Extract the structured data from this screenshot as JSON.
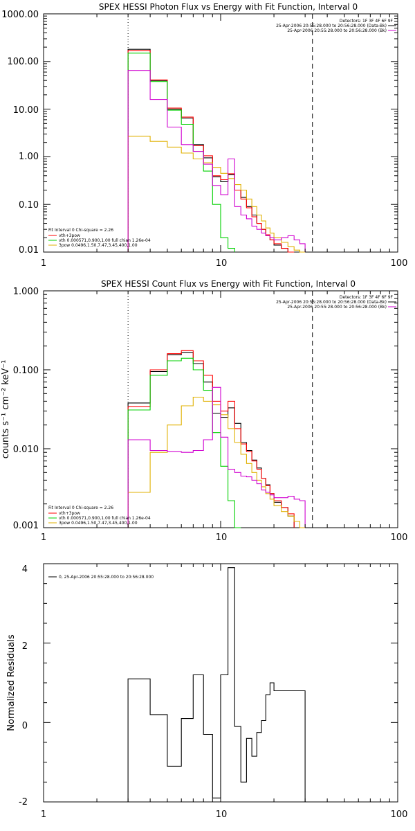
{
  "chart_data": [
    {
      "type": "line",
      "title": "SPEX HESSI Photon Flux vs Energy with Fit Function, Interval 0",
      "ylabel": "",
      "xscale": "log",
      "yscale": "log",
      "xlim": [
        1,
        100
      ],
      "ylim": [
        0.01,
        1000
      ],
      "x_ticks": [
        "1",
        "10",
        "100"
      ],
      "y_ticks": [
        "1000.00",
        "100.00",
        "10.00",
        "1.00",
        "0.10",
        "0.01"
      ],
      "energy_edges": [
        3,
        4,
        5,
        6,
        7,
        8,
        9,
        10,
        11,
        12,
        13,
        14,
        15,
        16,
        17,
        18,
        19,
        20,
        22,
        24,
        26,
        28,
        30,
        33
      ],
      "vlines": [
        {
          "x": 3,
          "style": "dotted"
        },
        {
          "x": 33,
          "style": "dashed"
        }
      ],
      "header_lines": [
        "Detectors: 1F 3F 4F 6F 9F",
        "25-Apr-2006 20:55:28.000 to 20:56:28.000 (Data-Bk)",
        "25-Apr-2006 20:55:28.000 to 20:56:28.000 (Bk)"
      ],
      "fit_info_lines": [
        "Fit Interval 0   Chi-square = 2.26",
        "vth+3pow",
        "vth 0.000571,0.900,1.00  full chian 1.26e-04",
        "3pow 0.0496,1.50,7.47,3.45,400,1.00"
      ],
      "series": [
        {
          "name": "Data-Bk",
          "color": "#000000",
          "values": [
            180,
            40,
            10,
            6.5,
            1.8,
            0.95,
            0.38,
            0.3,
            0.42,
            0.2,
            0.14,
            0.09,
            0.06,
            0.04,
            0.03,
            0.022,
            0.018,
            0.014,
            0.012,
            0.01
          ]
        },
        {
          "name": "vth+3pow",
          "color": "#ff0000",
          "values": [
            170,
            41,
            10.5,
            6.8,
            1.7,
            1.05,
            0.4,
            0.33,
            0.44,
            0.2,
            0.13,
            0.085,
            0.055,
            0.04,
            0.03,
            0.023,
            0.018,
            0.015,
            0.012,
            0.01
          ]
        },
        {
          "name": "vth",
          "color": "#00d000",
          "values": [
            150,
            38,
            9.5,
            4.8,
            1.3,
            0.5,
            0.1,
            0.02,
            0.012
          ]
        },
        {
          "name": "3pow",
          "color": "#e0b000",
          "values": [
            2.7,
            2.1,
            1.6,
            1.2,
            0.9,
            0.75,
            0.6,
            0.45,
            0.35,
            0.26,
            0.2,
            0.13,
            0.09,
            0.06,
            0.045,
            0.032,
            0.025,
            0.02,
            0.016,
            0.013,
            0.011,
            0.009
          ]
        },
        {
          "name": "Bk",
          "color": "#d000d0",
          "values": [
            65,
            16,
            4.2,
            1.8,
            1.3,
            0.7,
            0.25,
            0.16,
            0.9,
            0.09,
            0.06,
            0.05,
            0.035,
            0.03,
            0.025,
            0.022,
            0.02,
            0.018,
            0.02,
            0.022,
            0.018,
            0.015
          ]
        }
      ]
    },
    {
      "type": "line",
      "title": "SPEX HESSI Count Flux vs Energy with Fit Function, Interval 0",
      "ylabel": "counts s⁻¹ cm⁻² keV⁻¹",
      "xscale": "log",
      "yscale": "log",
      "xlim": [
        1,
        100
      ],
      "ylim": [
        0.001,
        1
      ],
      "x_ticks": [
        "1",
        "10",
        "100"
      ],
      "y_ticks": [
        "1.000",
        "0.100",
        "0.010",
        "0.001"
      ],
      "energy_edges": [
        3,
        4,
        5,
        6,
        7,
        8,
        9,
        10,
        11,
        12,
        13,
        14,
        15,
        16,
        17,
        18,
        19,
        20,
        22,
        24,
        26,
        28,
        30,
        33
      ],
      "vlines": [
        {
          "x": 3,
          "style": "dotted"
        },
        {
          "x": 33,
          "style": "dashed"
        }
      ],
      "header_lines": [
        "Detectors: 1F 3F 4F 6F 9F",
        "25-Apr-2006 20:55:28.000 to 20:56:28.000 (Data-Bk)",
        "25-Apr-2006 20:55:28.000 to 20:56:28.000 (Bk)"
      ],
      "fit_info_lines": [
        "Fit Interval 0   Chi-square = 2.26",
        "vth+3pow",
        "vth 0.000571,0.900,1.00  full chian 1.26e-04",
        "3pow 0.0496,1.50,7.47,3.45,400,1.00"
      ],
      "series": [
        {
          "name": "Data-Bk",
          "color": "#000000",
          "values": [
            0.038,
            0.095,
            0.155,
            0.165,
            0.12,
            0.07,
            0.028,
            0.025,
            0.033,
            0.021,
            0.012,
            0.0095,
            0.0072,
            0.0057,
            0.0042,
            0.0035,
            0.0027,
            0.0021,
            0.0018,
            0.0014
          ]
        },
        {
          "name": "vth+3pow",
          "color": "#ff0000",
          "values": [
            0.034,
            0.1,
            0.16,
            0.175,
            0.13,
            0.085,
            0.04,
            0.03,
            0.04,
            0.018,
            0.0115,
            0.0092,
            0.007,
            0.0055,
            0.0042,
            0.0034,
            0.0027,
            0.0022,
            0.0018,
            0.0015
          ]
        },
        {
          "name": "vth",
          "color": "#00d000",
          "values": [
            0.031,
            0.085,
            0.13,
            0.14,
            0.1,
            0.055,
            0.016,
            0.006,
            0.0022,
            0.001
          ]
        },
        {
          "name": "3pow",
          "color": "#e0b000",
          "values": [
            0.0028,
            0.009,
            0.02,
            0.035,
            0.045,
            0.04,
            0.036,
            0.027,
            0.018,
            0.012,
            0.0085,
            0.0065,
            0.005,
            0.004,
            0.0033,
            0.0027,
            0.0023,
            0.0019,
            0.0016,
            0.0014,
            0.0012,
            0.001
          ]
        },
        {
          "name": "Bk",
          "color": "#d000d0",
          "values": [
            0.013,
            0.0095,
            0.0092,
            0.009,
            0.0095,
            0.013,
            0.06,
            0.014,
            0.0055,
            0.005,
            0.0045,
            0.0044,
            0.004,
            0.0036,
            0.003,
            0.0028,
            0.0026,
            0.0024,
            0.0024,
            0.0025,
            0.0023,
            0.0022
          ]
        }
      ]
    },
    {
      "type": "line",
      "title": "",
      "ylabel": "Normalized Residuals",
      "xscale": "log",
      "yscale": "linear",
      "xlim": [
        1,
        100
      ],
      "ylim": [
        -2,
        4
      ],
      "x_ticks": [
        "1",
        "10",
        "100"
      ],
      "y_ticks": [
        "4",
        "2",
        "0",
        "-2"
      ],
      "legend": "0, 25-Apr-2006 20:55:28.000 to 20:56:28.000",
      "energy_edges": [
        3,
        4,
        5,
        6,
        7,
        8,
        9,
        10,
        11,
        12,
        13,
        14,
        15,
        16,
        17,
        18,
        19,
        20,
        22,
        24,
        26,
        28,
        30,
        33
      ],
      "series": [
        {
          "name": "0, 25-Apr-2006 20:55:28.000 to 20:56:28.000",
          "color": "#000000",
          "values": [
            1.1,
            0.2,
            -1.1,
            0.1,
            1.2,
            -0.3,
            -1.9,
            1.2,
            3.9,
            -0.1,
            -1.5,
            -0.4,
            -0.85,
            -0.25,
            0.05,
            0.7,
            1.0,
            0.8,
            0.8,
            0.8,
            0.8,
            0.8
          ]
        }
      ]
    }
  ]
}
